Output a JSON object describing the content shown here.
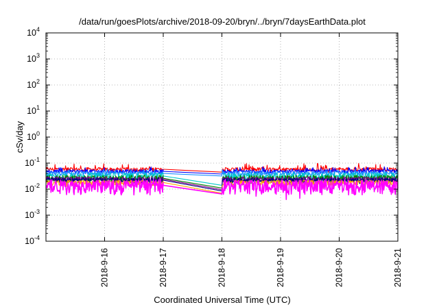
{
  "chart_data": {
    "type": "line",
    "title": "/data/run/goesPlots/archive/2018-09-20/bryn/../bryn/7daysEarthData.plot",
    "xlabel": "Coordinated Universal Time (UTC)",
    "ylabel": "cSv/day",
    "y_scale": "log",
    "ylim": [
      0.0001,
      10000
    ],
    "y_ticks": [
      {
        "base": "10",
        "exp": "-4"
      },
      {
        "base": "10",
        "exp": "-3"
      },
      {
        "base": "10",
        "exp": "-2"
      },
      {
        "base": "10",
        "exp": "-1"
      },
      {
        "base": "10",
        "exp": "0"
      },
      {
        "base": "10",
        "exp": "1"
      },
      {
        "base": "10",
        "exp": "2"
      },
      {
        "base": "10",
        "exp": "3"
      },
      {
        "base": "10",
        "exp": "4"
      }
    ],
    "xlim": [
      "2018-09-15 00:00",
      "2018-09-21 00:00"
    ],
    "x_ticks": [
      "2018-9-16",
      "2018-9-17",
      "2018-9-18",
      "2018-9-19",
      "2018-9-20",
      "2018-9-21"
    ],
    "grid": true,
    "legend": "none",
    "data_gap": [
      "2018-09-17 00:00",
      "2018-09-18 00:00"
    ],
    "series": [
      {
        "color": "#ff0000",
        "level": 0.058,
        "noise_hi": 0.04,
        "noise_lo": 0.01,
        "start_after_gap": 0.045
      },
      {
        "color": "#0000ff",
        "level": 0.048,
        "noise_hi": 0.025,
        "noise_lo": 0.008,
        "start_after_gap": 0.038
      },
      {
        "color": "#1e90ff",
        "level": 0.04,
        "noise_hi": 0.02,
        "noise_lo": 0.008,
        "start_after_gap": 0.032
      },
      {
        "color": "#00c8c8",
        "level": 0.032,
        "noise_hi": 0.012,
        "noise_lo": 0.01,
        "start_after_gap": 0.014
      },
      {
        "color": "#008000",
        "level": 0.026,
        "noise_hi": 0.008,
        "noise_lo": 0.008,
        "start_after_gap": 0.011
      },
      {
        "color": "#8b008b",
        "level": 0.024,
        "noise_hi": 0.006,
        "noise_lo": 0.006,
        "start_after_gap": 0.0095
      },
      {
        "color": "#000080",
        "level": 0.022,
        "noise_hi": 0.005,
        "noise_lo": 0.005,
        "start_after_gap": 0.0085
      },
      {
        "color": "#ffa500",
        "level": 0.018,
        "noise_hi": 0.004,
        "noise_lo": 0.004,
        "start_after_gap": 0.007
      },
      {
        "color": "#ff00ff",
        "level": 0.014,
        "noise_hi": 0.01,
        "noise_lo": 0.008,
        "start_after_gap": 0.0065
      }
    ]
  }
}
